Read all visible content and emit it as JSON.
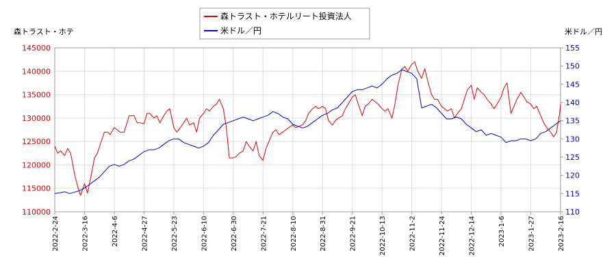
{
  "chart_data": {
    "type": "line",
    "left_axis_title": "森トラスト・ホテ",
    "right_axis_title": "米ドル／円",
    "legend": {
      "placement": "top-center",
      "entries": [
        {
          "label": "森トラスト・ホテルリート投資法人",
          "color": "#dd0000"
        },
        {
          "label": "米ドル／円",
          "color": "#0000cc"
        }
      ]
    },
    "grid": true,
    "x_tick_labels": [
      "2022-2-24",
      "2022-3-16",
      "2022-4-6",
      "2022-4-27",
      "2022-5-23",
      "2022-6-10",
      "2022-6-30",
      "2022-7-21",
      "2022-8-10",
      "2022-8-31",
      "2022-9-21",
      "2022-10-13",
      "2022-11-2",
      "2022-11-24",
      "2022-12-14",
      "2023-1-6",
      "2023-1-27",
      "2023-2-16"
    ],
    "y_left": {
      "min": 110000,
      "max": 145000,
      "ticks": [
        110000,
        115000,
        120000,
        125000,
        130000,
        135000,
        140000,
        145000
      ],
      "color": "#dd0000"
    },
    "y_right": {
      "min": 110,
      "max": 155,
      "ticks": [
        110,
        115,
        120,
        125,
        130,
        135,
        140,
        145,
        150,
        155
      ],
      "color": "#0000cc"
    },
    "series": [
      {
        "name": "森トラスト・ホテルリート投資法人",
        "axis": "left",
        "color": "#dd0000",
        "points": [
          [
            0,
            124000
          ],
          [
            0.3,
            122500
          ],
          [
            0.6,
            123000
          ],
          [
            1.0,
            122000
          ],
          [
            1.3,
            123500
          ],
          [
            1.6,
            122500
          ],
          [
            2.0,
            118000
          ],
          [
            2.3,
            115500
          ],
          [
            2.6,
            113500
          ],
          [
            3.0,
            116000
          ],
          [
            3.3,
            114000
          ],
          [
            3.6,
            117000
          ],
          [
            4.0,
            121500
          ],
          [
            4.3,
            122500
          ],
          [
            4.6,
            124500
          ],
          [
            5.0,
            127000
          ],
          [
            5.3,
            127000
          ],
          [
            5.6,
            126500
          ],
          [
            6.0,
            128000
          ],
          [
            6.3,
            127500
          ],
          [
            6.6,
            127000
          ],
          [
            7.0,
            127000
          ],
          [
            7.5,
            130500
          ],
          [
            8.0,
            130500
          ],
          [
            8.3,
            129000
          ],
          [
            8.6,
            129000
          ],
          [
            9.0,
            128800
          ],
          [
            9.3,
            131000
          ],
          [
            9.6,
            131000
          ],
          [
            10.0,
            130000
          ],
          [
            10.3,
            130500
          ],
          [
            10.6,
            129000
          ],
          [
            11.0,
            130500
          ],
          [
            11.3,
            131500
          ],
          [
            11.6,
            132000
          ],
          [
            12.0,
            128000
          ],
          [
            12.3,
            127000
          ],
          [
            12.6,
            127800
          ],
          [
            13.0,
            129000
          ],
          [
            13.3,
            130000
          ],
          [
            13.6,
            128500
          ],
          [
            14.0,
            129000
          ],
          [
            14.3,
            127000
          ],
          [
            14.6,
            130000
          ],
          [
            15.0,
            131000
          ],
          [
            15.3,
            132000
          ],
          [
            15.6,
            131500
          ],
          [
            16.0,
            132500
          ],
          [
            16.3,
            133000
          ],
          [
            16.6,
            134000
          ],
          [
            17.0,
            132000
          ],
          [
            17.3,
            128000
          ],
          [
            17.6,
            121500
          ],
          [
            18.0,
            121500
          ],
          [
            18.3,
            121800
          ],
          [
            18.6,
            122500
          ],
          [
            19.0,
            123000
          ],
          [
            19.3,
            125000
          ],
          [
            19.6,
            124000
          ],
          [
            20.0,
            123000
          ],
          [
            20.3,
            125000
          ],
          [
            20.6,
            122000
          ],
          [
            21.0,
            121000
          ],
          [
            21.3,
            123500
          ],
          [
            21.6,
            125000
          ],
          [
            22.0,
            127000
          ],
          [
            22.3,
            127500
          ],
          [
            22.6,
            126500
          ],
          [
            23.0,
            127000
          ],
          [
            23.3,
            127500
          ],
          [
            23.6,
            128000
          ],
          [
            24.0,
            128500
          ],
          [
            24.3,
            128000
          ],
          [
            24.6,
            128200
          ],
          [
            25.0,
            128600
          ],
          [
            25.3,
            129500
          ],
          [
            25.6,
            131000
          ],
          [
            26.0,
            132000
          ],
          [
            26.3,
            132500
          ],
          [
            26.6,
            132000
          ],
          [
            27.0,
            132500
          ],
          [
            27.3,
            132000
          ],
          [
            27.6,
            129500
          ],
          [
            28.0,
            128500
          ],
          [
            28.3,
            129500
          ],
          [
            28.6,
            130000
          ],
          [
            29.0,
            130500
          ],
          [
            29.3,
            132000
          ],
          [
            29.6,
            133000
          ],
          [
            30.0,
            134500
          ],
          [
            30.3,
            135000
          ],
          [
            30.6,
            133000
          ],
          [
            31.0,
            130500
          ],
          [
            31.3,
            132500
          ],
          [
            31.6,
            133000
          ],
          [
            32.0,
            134000
          ],
          [
            32.3,
            133500
          ],
          [
            32.6,
            133000
          ],
          [
            33.0,
            132000
          ],
          [
            33.3,
            131500
          ],
          [
            33.6,
            132000
          ],
          [
            34.0,
            130000
          ],
          [
            34.3,
            133000
          ],
          [
            34.6,
            137000
          ],
          [
            35.0,
            140500
          ],
          [
            35.3,
            141000
          ],
          [
            35.6,
            140000
          ],
          [
            36.0,
            141500
          ],
          [
            36.3,
            142000
          ],
          [
            36.6,
            140000
          ],
          [
            37.0,
            138500
          ],
          [
            37.3,
            140500
          ],
          [
            37.6,
            138000
          ],
          [
            38.0,
            135000
          ],
          [
            38.3,
            134000
          ],
          [
            38.6,
            134000
          ],
          [
            39.0,
            132500
          ],
          [
            39.3,
            132000
          ],
          [
            39.6,
            131500
          ],
          [
            40.0,
            132000
          ],
          [
            40.3,
            130000
          ],
          [
            40.6,
            131000
          ],
          [
            41.0,
            132000
          ],
          [
            41.3,
            134000
          ],
          [
            41.6,
            136000
          ],
          [
            42.0,
            137000
          ],
          [
            42.3,
            134000
          ],
          [
            42.6,
            136500
          ],
          [
            43.0,
            135500
          ],
          [
            43.3,
            135000
          ],
          [
            43.6,
            134000
          ],
          [
            44.0,
            133000
          ],
          [
            44.3,
            132000
          ],
          [
            44.6,
            133000
          ],
          [
            45.0,
            134500
          ],
          [
            45.3,
            136500
          ],
          [
            45.6,
            137500
          ],
          [
            46.0,
            131000
          ],
          [
            46.3,
            132500
          ],
          [
            46.6,
            134000
          ],
          [
            47.0,
            135500
          ],
          [
            47.3,
            134500
          ],
          [
            47.6,
            133500
          ],
          [
            48.0,
            133000
          ],
          [
            48.3,
            132000
          ],
          [
            48.6,
            132500
          ],
          [
            49.0,
            130500
          ],
          [
            49.3,
            129000
          ],
          [
            49.6,
            128000
          ],
          [
            50.0,
            127000
          ],
          [
            50.3,
            126000
          ],
          [
            50.6,
            127000
          ],
          [
            50.9,
            131000
          ],
          [
            51.0,
            133000
          ]
        ]
      },
      {
        "name": "米ドル／円",
        "axis": "right",
        "color": "#0000cc",
        "points": [
          [
            0,
            115
          ],
          [
            0.5,
            115.2
          ],
          [
            1.0,
            115.5
          ],
          [
            1.5,
            115.0
          ],
          [
            2.0,
            115.4
          ],
          [
            2.5,
            115.8
          ],
          [
            3.0,
            116.5
          ],
          [
            3.5,
            117.5
          ],
          [
            4.0,
            118.5
          ],
          [
            4.5,
            119.5
          ],
          [
            5.0,
            121.0
          ],
          [
            5.5,
            122.5
          ],
          [
            6.0,
            123.0
          ],
          [
            6.5,
            122.5
          ],
          [
            7.0,
            123.0
          ],
          [
            7.5,
            124.0
          ],
          [
            8.0,
            124.5
          ],
          [
            8.5,
            125.5
          ],
          [
            9.0,
            126.5
          ],
          [
            9.5,
            127.0
          ],
          [
            10.0,
            127.0
          ],
          [
            10.5,
            127.5
          ],
          [
            11.0,
            128.5
          ],
          [
            11.5,
            129.5
          ],
          [
            12.0,
            130.0
          ],
          [
            12.5,
            130.0
          ],
          [
            13.0,
            129.0
          ],
          [
            13.5,
            128.5
          ],
          [
            14.0,
            128.0
          ],
          [
            14.5,
            127.5
          ],
          [
            15.0,
            128.0
          ],
          [
            15.5,
            129.0
          ],
          [
            16.0,
            131.0
          ],
          [
            16.5,
            132.5
          ],
          [
            17.0,
            134.0
          ],
          [
            17.5,
            134.5
          ],
          [
            18.0,
            135.0
          ],
          [
            18.5,
            135.5
          ],
          [
            19.0,
            136.0
          ],
          [
            19.5,
            135.5
          ],
          [
            20.0,
            135.0
          ],
          [
            20.5,
            135.5
          ],
          [
            21.0,
            136.0
          ],
          [
            21.5,
            136.5
          ],
          [
            22.0,
            137.5
          ],
          [
            22.5,
            137.0
          ],
          [
            23.0,
            136.0
          ],
          [
            23.5,
            135.5
          ],
          [
            24.0,
            134.0
          ],
          [
            24.5,
            133.5
          ],
          [
            25.0,
            133.0
          ],
          [
            25.5,
            133.5
          ],
          [
            26.0,
            134.5
          ],
          [
            26.5,
            135.5
          ],
          [
            27.0,
            136.5
          ],
          [
            27.5,
            137.0
          ],
          [
            28.0,
            138.0
          ],
          [
            28.5,
            138.5
          ],
          [
            29.0,
            140.0
          ],
          [
            29.5,
            141.5
          ],
          [
            30.0,
            143.0
          ],
          [
            30.5,
            143.5
          ],
          [
            31.0,
            143.5
          ],
          [
            31.5,
            144.0
          ],
          [
            32.0,
            144.5
          ],
          [
            32.5,
            144.0
          ],
          [
            33.0,
            145.0
          ],
          [
            33.5,
            146.5
          ],
          [
            34.0,
            147.5
          ],
          [
            34.5,
            148.0
          ],
          [
            35.0,
            149.0
          ],
          [
            35.5,
            148.5
          ],
          [
            36.0,
            148.0
          ],
          [
            36.5,
            146.5
          ],
          [
            37.0,
            138.5
          ],
          [
            37.5,
            139.0
          ],
          [
            38.0,
            139.5
          ],
          [
            38.5,
            138.5
          ],
          [
            39.0,
            137.0
          ],
          [
            39.5,
            135.5
          ],
          [
            40.0,
            135.5
          ],
          [
            40.5,
            136.0
          ],
          [
            41.0,
            135.5
          ],
          [
            41.5,
            134.0
          ],
          [
            42.0,
            133.0
          ],
          [
            42.5,
            132.0
          ],
          [
            43.0,
            132.5
          ],
          [
            43.5,
            131.0
          ],
          [
            44.0,
            131.5
          ],
          [
            44.5,
            131.0
          ],
          [
            45.0,
            130.5
          ],
          [
            45.5,
            129.0
          ],
          [
            46.0,
            129.5
          ],
          [
            46.5,
            129.5
          ],
          [
            47.0,
            130.0
          ],
          [
            47.5,
            130.0
          ],
          [
            48.0,
            129.5
          ],
          [
            48.5,
            130.0
          ],
          [
            49.0,
            131.5
          ],
          [
            49.5,
            132.0
          ],
          [
            50.0,
            133.0
          ],
          [
            50.5,
            134.0
          ],
          [
            51.0,
            135.0
          ]
        ]
      }
    ]
  }
}
